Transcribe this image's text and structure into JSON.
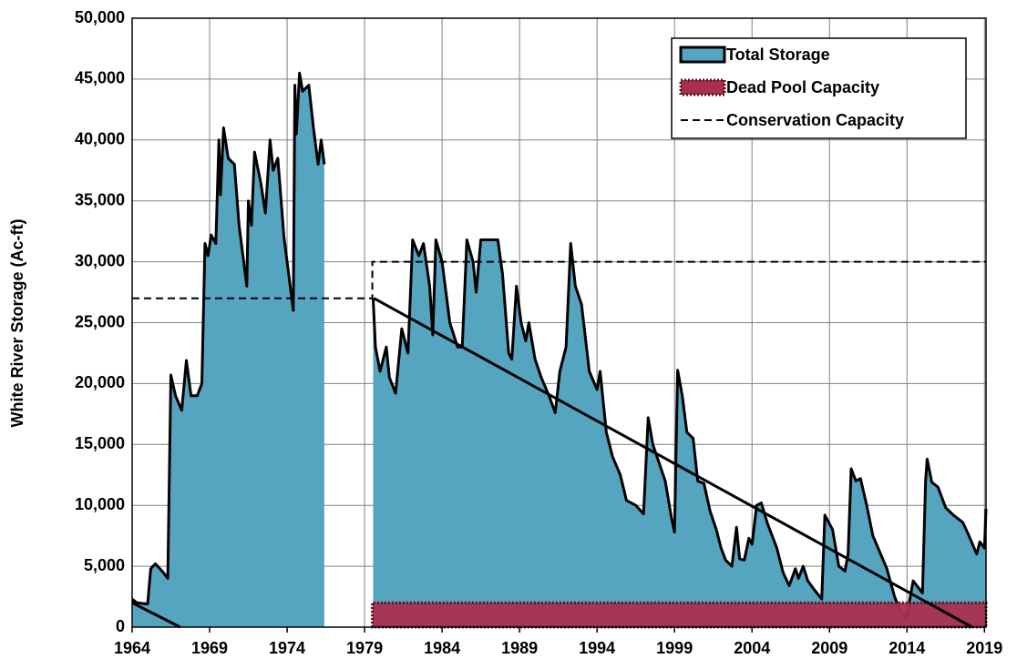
{
  "chart_data": {
    "type": "area",
    "y_label": "White River Storage (Ac-ft)",
    "xlim": [
      1964,
      2019.1
    ],
    "xticks": [
      1964,
      1969,
      1974,
      1979,
      1984,
      1989,
      1994,
      1999,
      2004,
      2009,
      2014,
      2019
    ],
    "ylim": [
      0,
      50000
    ],
    "yticks": [
      {
        "value": 0,
        "label": "0"
      },
      {
        "value": 5000,
        "label": "5,000"
      },
      {
        "value": 10000,
        "label": "10,000"
      },
      {
        "value": 15000,
        "label": "15,000"
      },
      {
        "value": 20000,
        "label": "20,000"
      },
      {
        "value": 25000,
        "label": "25,000"
      },
      {
        "value": 30000,
        "label": "30,000"
      },
      {
        "value": 35000,
        "label": "35,000"
      },
      {
        "value": 40000,
        "label": "40,000"
      },
      {
        "value": 45000,
        "label": "45,000"
      },
      {
        "value": 50000,
        "label": "50,000"
      }
    ],
    "grid": true,
    "legend": "top-right",
    "series": [
      {
        "name": "Total Storage",
        "mark": "area",
        "color": "#56a5c0",
        "x": [
          1964.0,
          1964.3,
          1965.0,
          1965.2,
          1965.5,
          1966.0,
          1966.3,
          1966.5,
          1966.8,
          1967.2,
          1967.5,
          1967.8,
          1968.2,
          1968.5,
          1968.7,
          1968.9,
          1969.1,
          1969.4,
          1969.6,
          1969.7,
          1969.9,
          1970.2,
          1970.6,
          1970.9,
          1971.4,
          1971.5,
          1971.7,
          1971.9,
          1972.3,
          1972.6,
          1972.9,
          1973.1,
          1973.4,
          1973.8,
          1974.2,
          1974.4,
          1974.5,
          1974.6,
          1974.8,
          1975.0,
          1975.4,
          1975.7,
          1976.0,
          1976.2,
          1976.4,
          1978.0,
          1979.55,
          1979.7,
          1980.0,
          1980.4,
          1980.6,
          1981.0,
          1981.4,
          1981.8,
          1982.1,
          1982.5,
          1982.8,
          1983.2,
          1983.4,
          1983.6,
          1984.0,
          1984.5,
          1985.0,
          1985.3,
          1985.6,
          1986.0,
          1986.2,
          1986.5,
          1987.0,
          1987.6,
          1987.9,
          1988.3,
          1988.5,
          1988.8,
          1989.1,
          1989.4,
          1989.6,
          1990.0,
          1990.4,
          1990.9,
          1991.3,
          1991.6,
          1992.0,
          1992.3,
          1992.6,
          1993.0,
          1993.5,
          1994.0,
          1994.2,
          1994.6,
          1995.0,
          1995.5,
          1995.9,
          1996.5,
          1997.0,
          1997.3,
          1997.6,
          1998.0,
          1998.4,
          1998.8,
          1999.0,
          1999.2,
          1999.5,
          1999.8,
          2000.2,
          2000.5,
          2000.9,
          2001.3,
          2001.7,
          2002.0,
          2002.3,
          2002.7,
          2003.0,
          2003.2,
          2003.5,
          2003.8,
          2004.0,
          2004.3,
          2004.6,
          2005.0,
          2005.6,
          2006.0,
          2006.4,
          2006.8,
          2007.0,
          2007.3,
          2007.6,
          2008.0,
          2008.5,
          2008.7,
          2009.2,
          2009.6,
          2010.0,
          2010.2,
          2010.4,
          2010.7,
          2011.0,
          2011.4,
          2011.8,
          2012.3,
          2012.7,
          2013.2,
          2013.6,
          2014.0,
          2014.2,
          2014.4,
          2015.0,
          2015.2,
          2015.3,
          2015.6,
          2016.0,
          2016.5,
          2017.0,
          2017.6,
          2018.0,
          2018.5,
          2018.7,
          2019.0,
          2019.1
        ],
        "values": [
          2300,
          2000,
          1900,
          4800,
          5200,
          4500,
          4000,
          20700,
          19000,
          17800,
          21900,
          19000,
          19000,
          20000,
          31500,
          30500,
          32200,
          31500,
          40000,
          35500,
          41000,
          38500,
          38000,
          33000,
          28000,
          35000,
          33000,
          39000,
          36500,
          34000,
          40000,
          37500,
          38500,
          32000,
          28000,
          26000,
          44500,
          40500,
          45500,
          44000,
          44500,
          41000,
          38000,
          40000,
          38000,
          null,
          27000,
          23000,
          21000,
          23000,
          20500,
          19200,
          24500,
          22500,
          31800,
          30500,
          31500,
          28000,
          24000,
          31800,
          30000,
          25000,
          23000,
          23000,
          31800,
          30000,
          27500,
          31800,
          31800,
          31800,
          29000,
          22500,
          22000,
          28000,
          25000,
          23500,
          25000,
          22000,
          20500,
          19000,
          17600,
          21000,
          23000,
          31500,
          28000,
          26500,
          21000,
          19500,
          21000,
          16000,
          14000,
          12500,
          10400,
          10000,
          9300,
          17200,
          15000,
          13500,
          12000,
          9000,
          7800,
          21100,
          19000,
          16000,
          15500,
          12000,
          11800,
          9500,
          8000,
          6500,
          5500,
          5000,
          8200,
          5600,
          5500,
          7300,
          6800,
          10000,
          10200,
          8500,
          6500,
          4500,
          3400,
          4800,
          4000,
          5000,
          3800,
          3100,
          2300,
          9200,
          8000,
          5000,
          4600,
          6000,
          13000,
          12000,
          12200,
          10000,
          7500,
          6000,
          4800,
          2500,
          1200,
          800,
          2400,
          3800,
          2800,
          12000,
          13800,
          11900,
          11500,
          9800,
          9200,
          8600,
          7500,
          6000,
          7000,
          6500,
          9700
        ]
      },
      {
        "name": "Dead Pool Capacity",
        "mark": "band",
        "color": "#a8304f",
        "x": [
          1979.5,
          2019.1
        ],
        "values": [
          2000,
          2000
        ]
      },
      {
        "name": "Conservation Capacity",
        "mark": "dashed",
        "color": "#000000",
        "x": [
          1964,
          1979.5,
          1979.5,
          2019.1
        ],
        "values": [
          27000,
          27000,
          30000,
          30000
        ]
      }
    ],
    "trend_lines": [
      {
        "x": [
          1964,
          1967.1
        ],
        "values": [
          2000,
          0
        ]
      },
      {
        "x": [
          1979.6,
          2018.2
        ],
        "values": [
          27000,
          0
        ]
      }
    ]
  }
}
